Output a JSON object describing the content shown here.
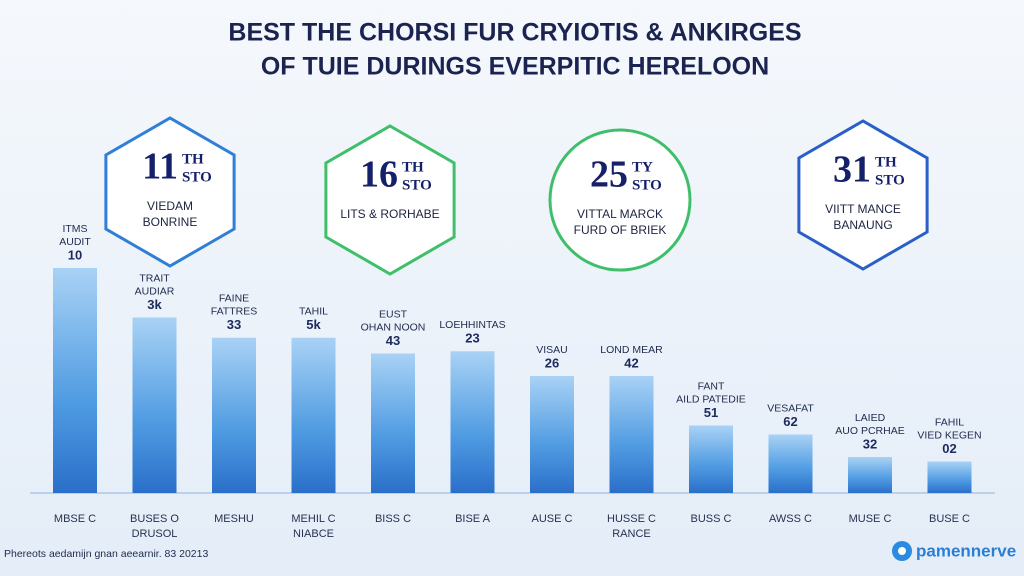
{
  "title_lines": [
    "BEST THE CHORSI FUR CRYIOTIS & ANKIRGES",
    "OF TUIE DURINGS EVERPITIC HERELOON"
  ],
  "badges": [
    {
      "number": "11",
      "suffix": "TH",
      "unit": "STO",
      "caption": [
        "VIEDAM",
        "BONRINE"
      ]
    },
    {
      "number": "16",
      "suffix": "TH",
      "unit": "STO",
      "caption": [
        "LITS & RORHABE"
      ]
    },
    {
      "number": "25",
      "suffix": "TY",
      "unit": "STO",
      "caption": [
        "VITTAL MARCK",
        "FURD OF BRIEK"
      ]
    },
    {
      "number": "31",
      "suffix": "TH",
      "unit": "STO",
      "caption": [
        "VIITT MANCE",
        "BANAUNG"
      ]
    }
  ],
  "chart_data": {
    "type": "bar",
    "categories": [
      [
        "MBSE C"
      ],
      [
        "BUSES O",
        "DRUSOL"
      ],
      [
        "MESHU"
      ],
      [
        "MEHIL C",
        "NIABCE"
      ],
      [
        "BISS C"
      ],
      [
        "BISE A"
      ],
      [
        "AUSE C"
      ],
      [
        "HUSSE C",
        "RANCE"
      ],
      [
        "BUSS C"
      ],
      [
        "AWSS C"
      ],
      [
        "MUSE C"
      ],
      [
        "BUSE C"
      ]
    ],
    "bar_labels": [
      {
        "title": [
          "ITMS",
          "AUDIT"
        ],
        "number": "10"
      },
      {
        "title": [
          "TRAIT",
          "AUDIAR"
        ],
        "number": "3k"
      },
      {
        "title": [
          "FAINE",
          "FATTRES"
        ],
        "number": "33"
      },
      {
        "title": [
          "TAHIL"
        ],
        "number": "5k"
      },
      {
        "title": [
          "EUST",
          "OHAN NOON"
        ],
        "number": "43"
      },
      {
        "title": [
          "LOEHHINTAS"
        ],
        "number": "23"
      },
      {
        "title": [
          "VISAU"
        ],
        "number": "26"
      },
      {
        "title": [
          "LOND MEAR"
        ],
        "number": "42"
      },
      {
        "title": [
          "FANT",
          "AILD PATEDIE"
        ],
        "number": "51"
      },
      {
        "title": [
          "VESAFAT"
        ],
        "number": "62"
      },
      {
        "title": [
          "LAIED",
          "AUO PCRHAE"
        ],
        "number": "32"
      },
      {
        "title": [
          "FAHIL",
          "VIED KEGEN"
        ],
        "number": "02"
      }
    ],
    "values": [
      100,
      78,
      69,
      69,
      62,
      63,
      52,
      52,
      30,
      26,
      16,
      14
    ],
    "color": "#3d8fe0",
    "ylim": [
      0,
      100
    ]
  },
  "footer": "Phereots aedamijn gnan aeearnir. 83 20213",
  "logo": "pamennerve"
}
